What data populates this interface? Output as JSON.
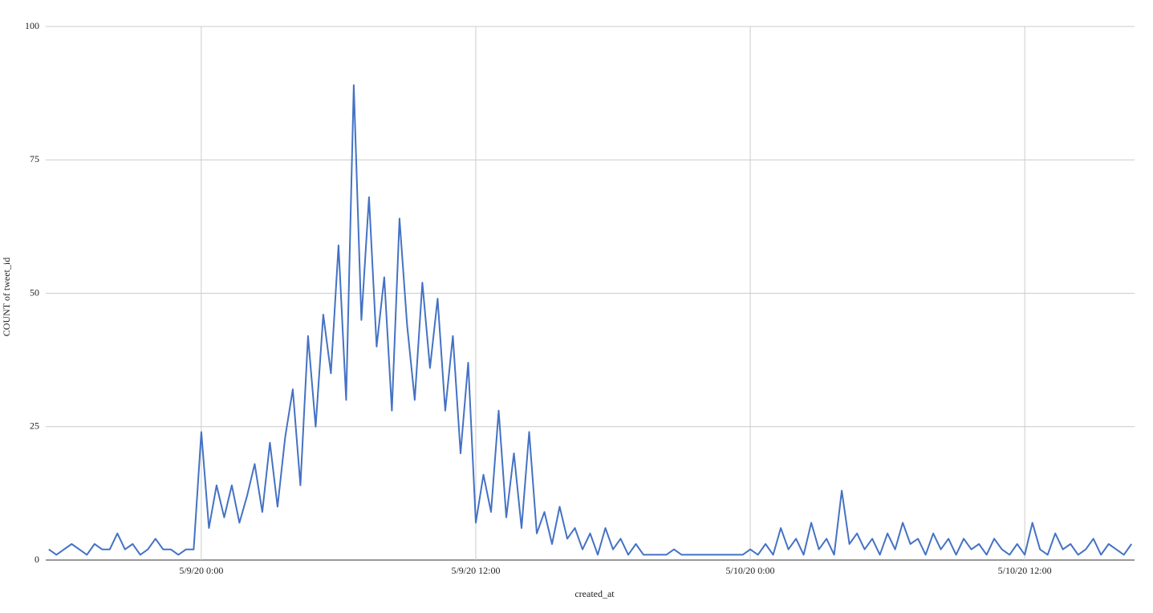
{
  "chart_data": {
    "type": "line",
    "x_label": "created_at",
    "y_label": "COUNT of tweet_id",
    "xlim": [
      "5/8/20 17:12",
      "5/10/20 16:48"
    ],
    "xticks": [
      "5/9/20 0:00",
      "5/9/20 12:00",
      "5/10/20 0:00",
      "5/10/20 12:00"
    ],
    "ylim": [
      0,
      100
    ],
    "yticks": [
      0,
      25,
      50,
      75,
      100
    ],
    "grid": true,
    "x": [
      "5/8/20 17:20",
      "5/8/20 17:40",
      "5/8/20 18:00",
      "5/8/20 18:20",
      "5/8/20 18:40",
      "5/8/20 19:00",
      "5/8/20 19:20",
      "5/8/20 19:40",
      "5/8/20 20:00",
      "5/8/20 20:20",
      "5/8/20 20:40",
      "5/8/20 21:00",
      "5/8/20 21:20",
      "5/8/20 21:40",
      "5/8/20 22:00",
      "5/8/20 22:20",
      "5/8/20 22:40",
      "5/8/20 23:00",
      "5/8/20 23:20",
      "5/8/20 23:40",
      "5/9/20 0:00",
      "5/9/20 0:20",
      "5/9/20 0:40",
      "5/9/20 1:00",
      "5/9/20 1:20",
      "5/9/20 1:40",
      "5/9/20 2:00",
      "5/9/20 2:20",
      "5/9/20 2:40",
      "5/9/20 3:00",
      "5/9/20 3:20",
      "5/9/20 3:40",
      "5/9/20 4:00",
      "5/9/20 4:20",
      "5/9/20 4:40",
      "5/9/20 5:00",
      "5/9/20 5:20",
      "5/9/20 5:40",
      "5/9/20 6:00",
      "5/9/20 6:20",
      "5/9/20 6:40",
      "5/9/20 7:00",
      "5/9/20 7:20",
      "5/9/20 7:40",
      "5/9/20 8:00",
      "5/9/20 8:20",
      "5/9/20 8:40",
      "5/9/20 9:00",
      "5/9/20 9:20",
      "5/9/20 9:40",
      "5/9/20 10:00",
      "5/9/20 10:20",
      "5/9/20 10:40",
      "5/9/20 11:00",
      "5/9/20 11:20",
      "5/9/20 11:40",
      "5/9/20 12:00",
      "5/9/20 12:20",
      "5/9/20 12:40",
      "5/9/20 13:00",
      "5/9/20 13:20",
      "5/9/20 13:40",
      "5/9/20 14:00",
      "5/9/20 14:20",
      "5/9/20 14:40",
      "5/9/20 15:00",
      "5/9/20 15:20",
      "5/9/20 15:40",
      "5/9/20 16:00",
      "5/9/20 16:20",
      "5/9/20 16:40",
      "5/9/20 17:00",
      "5/9/20 17:20",
      "5/9/20 17:40",
      "5/9/20 18:00",
      "5/9/20 18:20",
      "5/9/20 18:40",
      "5/9/20 19:00",
      "5/9/20 19:20",
      "5/9/20 19:40",
      "5/9/20 20:00",
      "5/9/20 20:20",
      "5/9/20 20:40",
      "5/9/20 21:00",
      "5/9/20 21:20",
      "5/9/20 21:40",
      "5/9/20 22:00",
      "5/9/20 22:20",
      "5/9/20 22:40",
      "5/9/20 23:00",
      "5/9/20 23:20",
      "5/9/20 23:40",
      "5/10/20 0:00",
      "5/10/20 0:20",
      "5/10/20 0:40",
      "5/10/20 1:00",
      "5/10/20 1:20",
      "5/10/20 1:40",
      "5/10/20 2:00",
      "5/10/20 2:20",
      "5/10/20 2:40",
      "5/10/20 3:00",
      "5/10/20 3:20",
      "5/10/20 3:40",
      "5/10/20 4:00",
      "5/10/20 4:20",
      "5/10/20 4:40",
      "5/10/20 5:00",
      "5/10/20 5:20",
      "5/10/20 5:40",
      "5/10/20 6:00",
      "5/10/20 6:20",
      "5/10/20 6:40",
      "5/10/20 7:00",
      "5/10/20 7:20",
      "5/10/20 7:40",
      "5/10/20 8:00",
      "5/10/20 8:20",
      "5/10/20 8:40",
      "5/10/20 9:00",
      "5/10/20 9:20",
      "5/10/20 9:40",
      "5/10/20 10:00",
      "5/10/20 10:20",
      "5/10/20 10:40",
      "5/10/20 11:00",
      "5/10/20 11:20",
      "5/10/20 11:40",
      "5/10/20 12:00",
      "5/10/20 12:20",
      "5/10/20 12:40",
      "5/10/20 13:00",
      "5/10/20 13:20",
      "5/10/20 13:40",
      "5/10/20 14:00",
      "5/10/20 14:20",
      "5/10/20 14:40",
      "5/10/20 15:00",
      "5/10/20 15:20",
      "5/10/20 15:40",
      "5/10/20 16:00",
      "5/10/20 16:20",
      "5/10/20 16:40"
    ],
    "series": [
      {
        "color": "#4472c4",
        "values": [
          2,
          1,
          2,
          3,
          2,
          1,
          3,
          2,
          2,
          5,
          2,
          3,
          1,
          2,
          4,
          2,
          2,
          1,
          2,
          2,
          24,
          6,
          14,
          8,
          14,
          7,
          12,
          18,
          9,
          22,
          10,
          23,
          32,
          14,
          42,
          25,
          46,
          35,
          59,
          30,
          89,
          45,
          68,
          40,
          53,
          28,
          64,
          44,
          30,
          52,
          36,
          49,
          28,
          42,
          20,
          37,
          7,
          16,
          9,
          28,
          8,
          20,
          6,
          24,
          5,
          9,
          3,
          10,
          4,
          6,
          2,
          5,
          1,
          6,
          2,
          4,
          1,
          3,
          1,
          1,
          1,
          1,
          2,
          1,
          1,
          1,
          1,
          1,
          1,
          1,
          1,
          1,
          2,
          1,
          3,
          1,
          6,
          2,
          4,
          1,
          7,
          2,
          4,
          1,
          13,
          3,
          5,
          2,
          4,
          1,
          5,
          2,
          7,
          3,
          4,
          1,
          5,
          2,
          4,
          1,
          4,
          2,
          3,
          1,
          4,
          2,
          1,
          3,
          1,
          7,
          2,
          1,
          5,
          2,
          3,
          1,
          2,
          4,
          1,
          3,
          2,
          1,
          3
        ]
      }
    ]
  }
}
